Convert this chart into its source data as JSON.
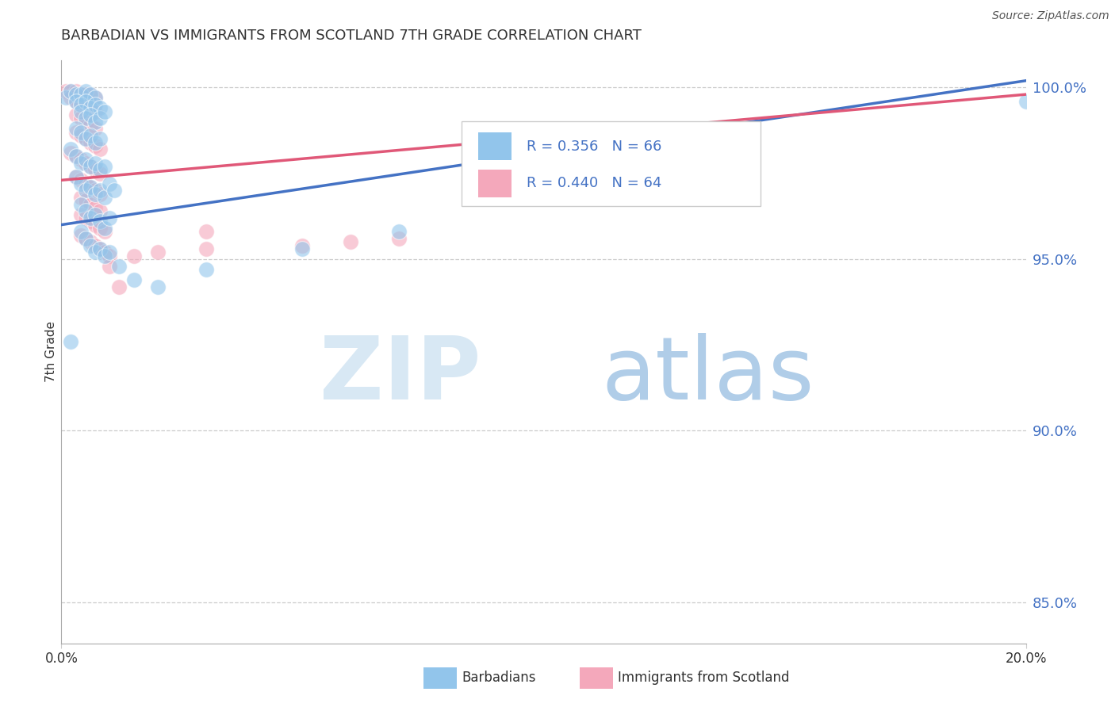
{
  "title": "BARBADIAN VS IMMIGRANTS FROM SCOTLAND 7TH GRADE CORRELATION CHART",
  "source": "Source: ZipAtlas.com",
  "ylabel": "7th Grade",
  "legend1_r": "0.356",
  "legend1_n": "66",
  "legend2_r": "0.440",
  "legend2_n": "64",
  "blue_color": "#92C5EB",
  "pink_color": "#F4A8BB",
  "blue_line_color": "#4472C4",
  "pink_line_color": "#E05878",
  "background": "#FFFFFF",
  "x_min": 0.0,
  "x_max": 0.2,
  "y_min": 0.838,
  "y_max": 1.008,
  "y_ticks": [
    0.85,
    0.9,
    0.95,
    1.0
  ],
  "blue_dots": [
    [
      0.001,
      0.997
    ],
    [
      0.002,
      0.999
    ],
    [
      0.003,
      0.998
    ],
    [
      0.004,
      0.998
    ],
    [
      0.005,
      0.999
    ],
    [
      0.006,
      0.998
    ],
    [
      0.007,
      0.997
    ],
    [
      0.003,
      0.996
    ],
    [
      0.004,
      0.995
    ],
    [
      0.005,
      0.996
    ],
    [
      0.006,
      0.994
    ],
    [
      0.007,
      0.995
    ],
    [
      0.008,
      0.994
    ],
    [
      0.004,
      0.993
    ],
    [
      0.005,
      0.991
    ],
    [
      0.006,
      0.992
    ],
    [
      0.007,
      0.99
    ],
    [
      0.008,
      0.991
    ],
    [
      0.009,
      0.993
    ],
    [
      0.003,
      0.988
    ],
    [
      0.004,
      0.987
    ],
    [
      0.005,
      0.985
    ],
    [
      0.006,
      0.986
    ],
    [
      0.007,
      0.984
    ],
    [
      0.008,
      0.985
    ],
    [
      0.002,
      0.982
    ],
    [
      0.003,
      0.98
    ],
    [
      0.004,
      0.978
    ],
    [
      0.005,
      0.979
    ],
    [
      0.006,
      0.977
    ],
    [
      0.007,
      0.978
    ],
    [
      0.008,
      0.976
    ],
    [
      0.009,
      0.977
    ],
    [
      0.003,
      0.974
    ],
    [
      0.004,
      0.972
    ],
    [
      0.005,
      0.97
    ],
    [
      0.006,
      0.971
    ],
    [
      0.007,
      0.969
    ],
    [
      0.008,
      0.97
    ],
    [
      0.009,
      0.968
    ],
    [
      0.01,
      0.972
    ],
    [
      0.011,
      0.97
    ],
    [
      0.004,
      0.966
    ],
    [
      0.005,
      0.964
    ],
    [
      0.006,
      0.962
    ],
    [
      0.007,
      0.963
    ],
    [
      0.008,
      0.961
    ],
    [
      0.009,
      0.959
    ],
    [
      0.01,
      0.962
    ],
    [
      0.004,
      0.958
    ],
    [
      0.005,
      0.956
    ],
    [
      0.006,
      0.954
    ],
    [
      0.007,
      0.952
    ],
    [
      0.008,
      0.953
    ],
    [
      0.009,
      0.951
    ],
    [
      0.01,
      0.952
    ],
    [
      0.012,
      0.948
    ],
    [
      0.015,
      0.944
    ],
    [
      0.02,
      0.942
    ],
    [
      0.03,
      0.947
    ],
    [
      0.05,
      0.953
    ],
    [
      0.07,
      0.958
    ],
    [
      0.1,
      0.968
    ],
    [
      0.13,
      0.977
    ],
    [
      0.2,
      0.996
    ],
    [
      0.002,
      0.926
    ]
  ],
  "pink_dots": [
    [
      0.001,
      0.999
    ],
    [
      0.002,
      0.999
    ],
    [
      0.003,
      0.999
    ],
    [
      0.004,
      0.998
    ],
    [
      0.005,
      0.998
    ],
    [
      0.006,
      0.998
    ],
    [
      0.007,
      0.997
    ],
    [
      0.002,
      0.997
    ],
    [
      0.003,
      0.996
    ],
    [
      0.004,
      0.995
    ],
    [
      0.005,
      0.995
    ],
    [
      0.006,
      0.994
    ],
    [
      0.007,
      0.993
    ],
    [
      0.003,
      0.992
    ],
    [
      0.004,
      0.991
    ],
    [
      0.005,
      0.99
    ],
    [
      0.006,
      0.989
    ],
    [
      0.007,
      0.988
    ],
    [
      0.003,
      0.987
    ],
    [
      0.004,
      0.986
    ],
    [
      0.005,
      0.985
    ],
    [
      0.006,
      0.984
    ],
    [
      0.007,
      0.983
    ],
    [
      0.008,
      0.982
    ],
    [
      0.002,
      0.981
    ],
    [
      0.003,
      0.98
    ],
    [
      0.004,
      0.979
    ],
    [
      0.005,
      0.978
    ],
    [
      0.006,
      0.977
    ],
    [
      0.007,
      0.976
    ],
    [
      0.008,
      0.975
    ],
    [
      0.003,
      0.974
    ],
    [
      0.004,
      0.973
    ],
    [
      0.005,
      0.972
    ],
    [
      0.006,
      0.971
    ],
    [
      0.007,
      0.97
    ],
    [
      0.008,
      0.969
    ],
    [
      0.004,
      0.968
    ],
    [
      0.005,
      0.967
    ],
    [
      0.006,
      0.966
    ],
    [
      0.007,
      0.965
    ],
    [
      0.008,
      0.964
    ],
    [
      0.004,
      0.963
    ],
    [
      0.005,
      0.962
    ],
    [
      0.006,
      0.961
    ],
    [
      0.007,
      0.96
    ],
    [
      0.008,
      0.959
    ],
    [
      0.009,
      0.958
    ],
    [
      0.004,
      0.957
    ],
    [
      0.005,
      0.956
    ],
    [
      0.006,
      0.955
    ],
    [
      0.007,
      0.954
    ],
    [
      0.008,
      0.953
    ],
    [
      0.009,
      0.952
    ],
    [
      0.01,
      0.951
    ],
    [
      0.015,
      0.951
    ],
    [
      0.02,
      0.952
    ],
    [
      0.03,
      0.953
    ],
    [
      0.05,
      0.954
    ],
    [
      0.06,
      0.955
    ],
    [
      0.07,
      0.956
    ],
    [
      0.01,
      0.948
    ],
    [
      0.03,
      0.958
    ],
    [
      0.012,
      0.942
    ]
  ],
  "blue_line": [
    [
      0.0,
      0.96
    ],
    [
      0.2,
      1.002
    ]
  ],
  "pink_line": [
    [
      0.0,
      0.973
    ],
    [
      0.2,
      0.998
    ]
  ]
}
